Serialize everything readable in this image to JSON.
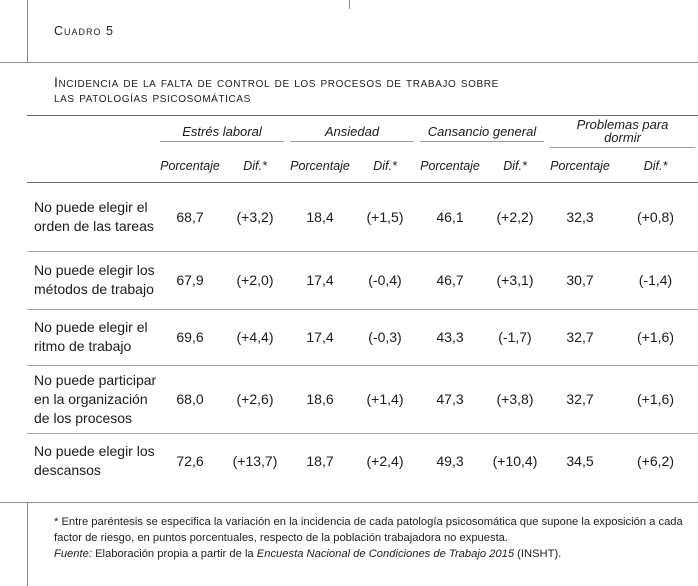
{
  "cuadro_label": "Cuadro 5",
  "title_line1": "Incidencia de la falta de control de los procesos de trabajo sobre",
  "title_line2": "las patologías psicosomáticas",
  "groups": [
    "Estrés laboral",
    "Ansiedad",
    "Cansancio general",
    "Problemas para dormir"
  ],
  "subheaders": [
    "Porcentaje",
    "Dif.*",
    "Porcentaje",
    "Dif.*",
    "Porcentaje",
    "Dif.*",
    "Porcentaje",
    "Dif.*"
  ],
  "rows": [
    {
      "label": "No puede elegir el orden de las tareas",
      "values": [
        "68,7",
        "(+3,2)",
        "18,4",
        "(+1,5)",
        "46,1",
        "(+2,2)",
        "32,3",
        "(+0,8)"
      ]
    },
    {
      "label": "No puede elegir los métodos de trabajo",
      "values": [
        "67,9",
        "(+2,0)",
        "17,4",
        "(-0,4)",
        "46,7",
        "(+3,1)",
        "30,7",
        "(-1,4)"
      ]
    },
    {
      "label": "No puede elegir el ritmo de trabajo",
      "values": [
        "69,6",
        "(+4,4)",
        "17,4",
        "(-0,3)",
        "43,3",
        "(-1,7)",
        "32,7",
        "(+1,6)"
      ]
    },
    {
      "label": "No puede participar en la organización de los procesos",
      "values": [
        "68,0",
        "(+2,6)",
        "18,6",
        "(+1,4)",
        "47,3",
        "(+3,8)",
        "32,7",
        "(+1,6)"
      ]
    },
    {
      "label": "No puede elegir los descansos",
      "values": [
        "72,6",
        "(+13,7)",
        "18,7",
        "(+2,4)",
        "49,3",
        "(+10,4)",
        "34,5",
        "(+6,2)"
      ]
    }
  ],
  "footnote": {
    "note": "* Entre paréntesis se especifica la variación en la incidencia de cada patología psicosomática que supone la exposición a cada factor de riesgo, en puntos porcentuales, respecto de la población trabajadora no expuesta.",
    "source_label": "Fuente:",
    "source_text_1": "Elaboración propia a partir de la",
    "source_title": "Encuesta Nacional de Condiciones de Trabajo 2015",
    "source_text_2": "(INSHT)."
  }
}
